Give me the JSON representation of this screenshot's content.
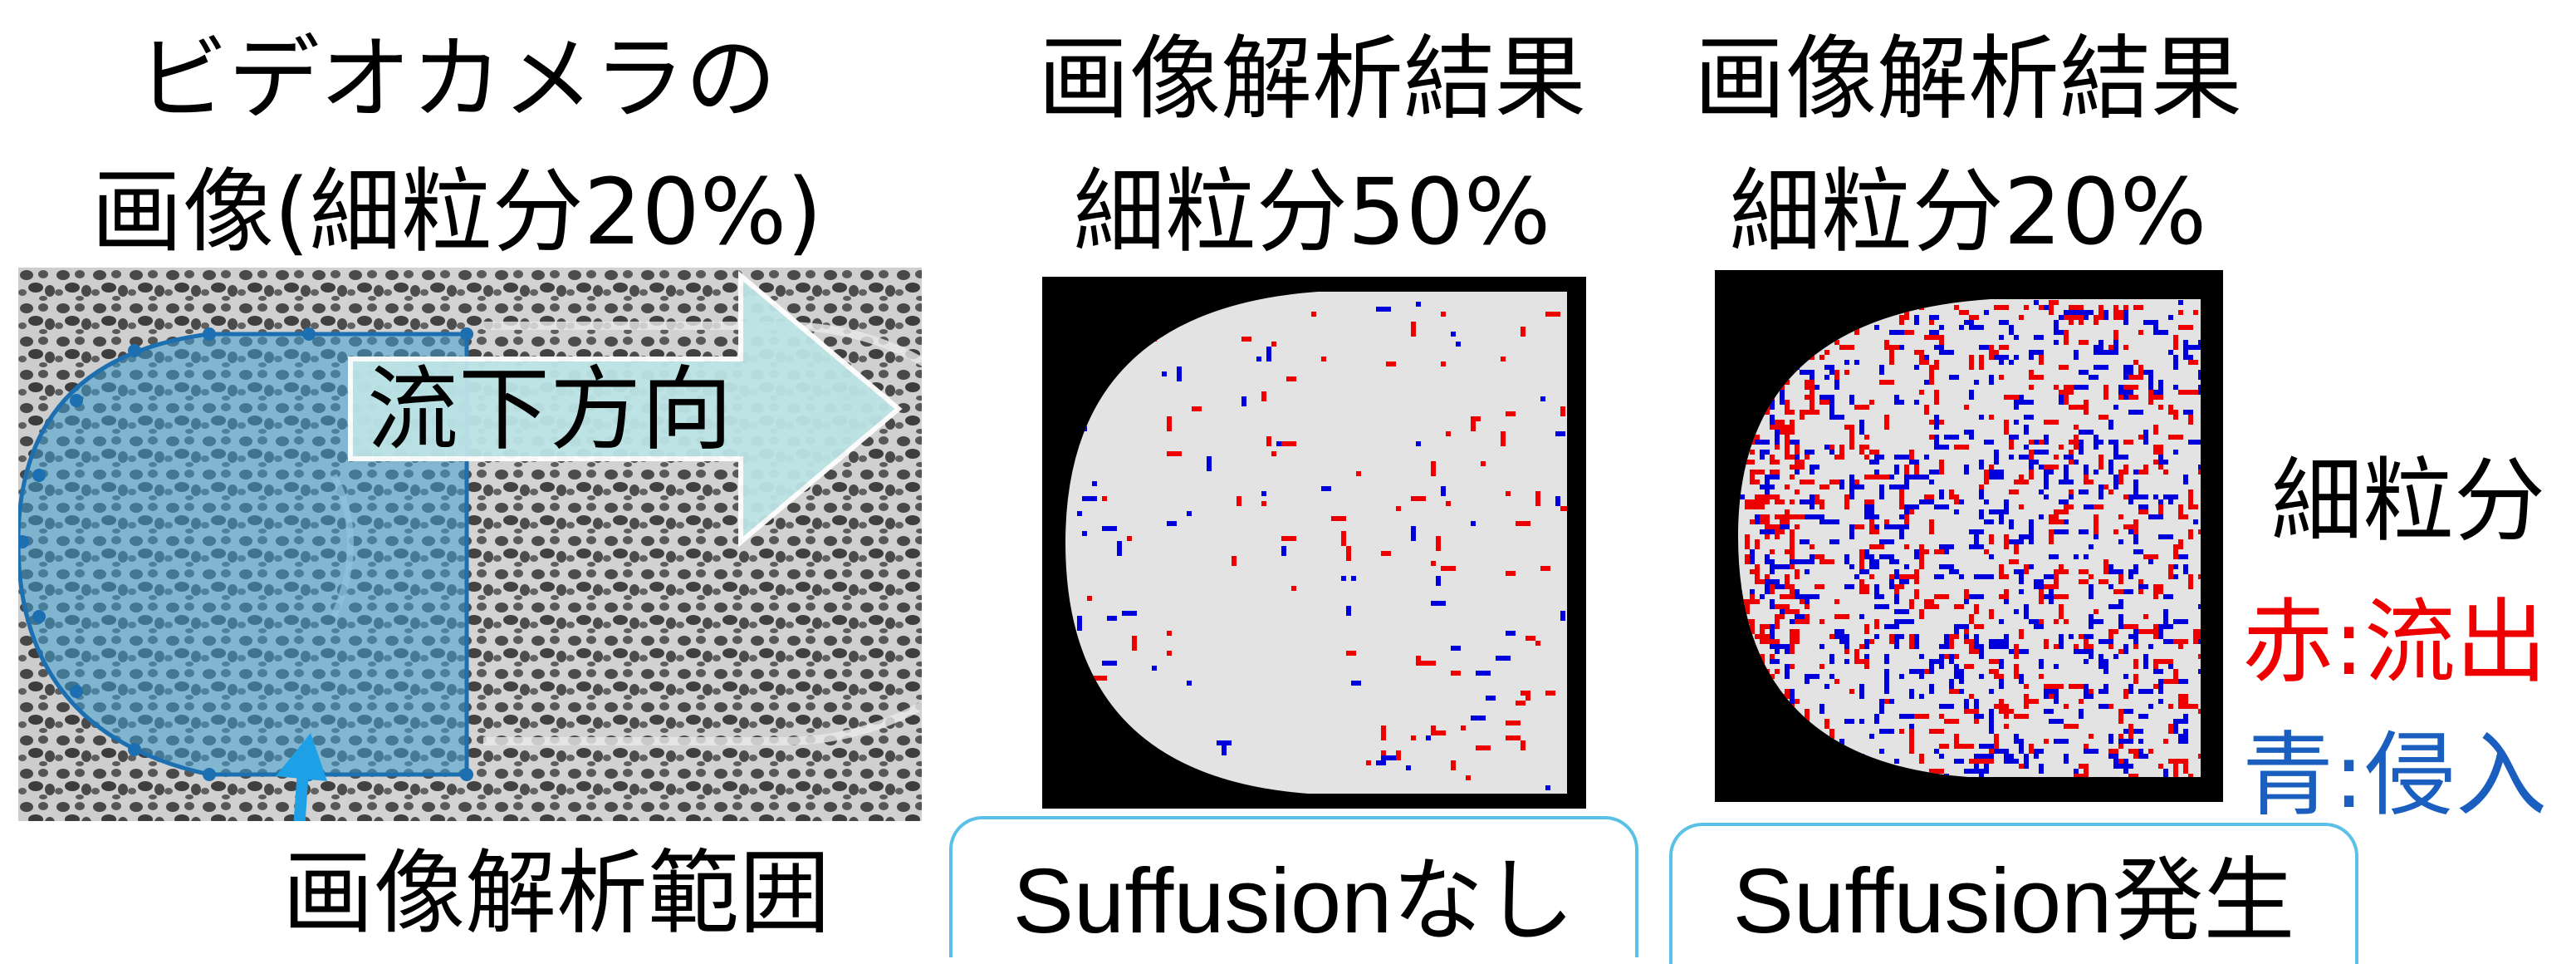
{
  "left": {
    "title_line1": "ビデオカメラの",
    "title_line2": "画像(細粒分20%)",
    "arrow_label": "流下方向",
    "range_label": "画像解析範囲"
  },
  "middle": {
    "title_line1": "画像解析結果",
    "title_line2": "細粒分50%",
    "box_label": "Suffusionなし"
  },
  "right": {
    "title_line1": "画像解析結果",
    "title_line2": "細粒分20%",
    "box_label": "Suffusion発生"
  },
  "legend": {
    "heading": "細粒分",
    "red_label": "赤:流出",
    "blue_label": "青:侵入"
  },
  "colors": {
    "outflow": "#ee0000",
    "inflow": "#0000dd",
    "legend_blue": "#1a5fbf",
    "analysis_region": "#3f9fcf",
    "arrow_fill": "#bde4e6",
    "pointer": "#1ea0e6",
    "box_border": "#5bc0e6"
  }
}
